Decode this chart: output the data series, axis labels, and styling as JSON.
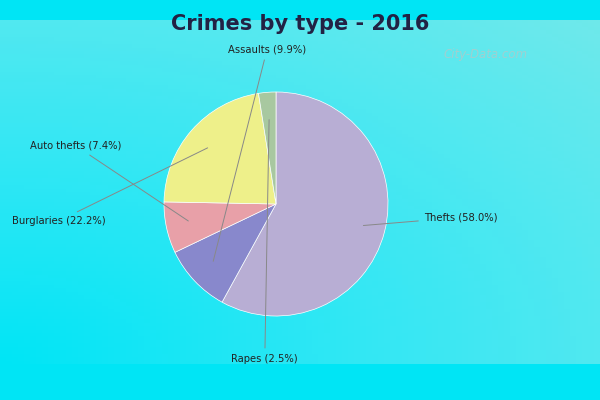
{
  "title": "Crimes by type - 2016",
  "title_fontsize": 15,
  "title_fontweight": "bold",
  "plot_values": [
    58.0,
    9.9,
    7.4,
    22.2,
    2.5
  ],
  "plot_colors": [
    "#b8aed4",
    "#8888cc",
    "#e8a0a8",
    "#eef08a",
    "#a8c8a0"
  ],
  "plot_labels": [
    "Thefts (58.0%)",
    "Assaults (9.9%)",
    "Auto thefts (7.4%)",
    "Burglaries (22.2%)",
    "Rapes (2.5%)"
  ],
  "background_outer": "#00e5f5",
  "background_inner": "#d8eedc",
  "watermark": "City-Data.com",
  "label_positions": {
    "Thefts (58.0%)": [
      1.32,
      -0.12,
      "left"
    ],
    "Assaults (9.9%)": [
      -0.08,
      1.38,
      "center"
    ],
    "Auto thefts (7.4%)": [
      -1.38,
      0.52,
      "right"
    ],
    "Burglaries (22.2%)": [
      -1.52,
      -0.15,
      "right"
    ],
    "Rapes (2.5%)": [
      -0.1,
      -1.38,
      "center"
    ]
  }
}
